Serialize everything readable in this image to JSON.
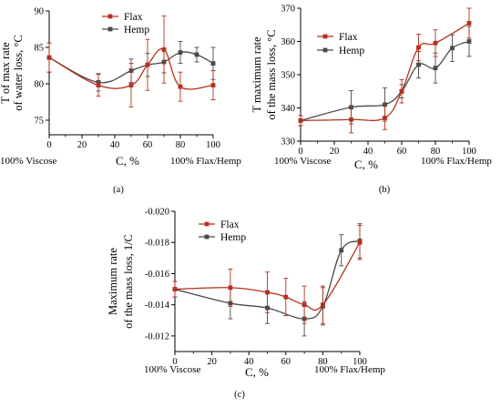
{
  "colors": {
    "flax": "#b5301f",
    "hemp": "#4a4a4a",
    "axis": "#000000"
  },
  "chart_data": [
    {
      "type": "line",
      "panel_label": "(a)",
      "title": "",
      "xlabel": "C, %",
      "ylabel": [
        "T of max rate",
        "of water loss, °C"
      ],
      "xlim": [
        0,
        100
      ],
      "ylim": [
        73,
        90
      ],
      "xticks": [
        0,
        20,
        40,
        60,
        80,
        100
      ],
      "yticks": [
        75,
        80,
        85,
        90
      ],
      "x_annotations": {
        "left": "100% Viscose",
        "right": "100% Flax/Hemp"
      },
      "legend_position": "top-center",
      "series": [
        {
          "name": "Flax",
          "color": "#b5301f",
          "marker": "square",
          "x": [
            0,
            30,
            50,
            60,
            70,
            80,
            100
          ],
          "y": [
            83.6,
            79.8,
            79.8,
            82.6,
            84.7,
            79.6,
            79.8
          ],
          "err": [
            2.0,
            1.5,
            3.0,
            3.5,
            4.6,
            2.0,
            2.0
          ]
        },
        {
          "name": "Hemp",
          "color": "#4a4a4a",
          "marker": "square",
          "x": [
            0,
            30,
            50,
            60,
            70,
            80,
            90,
            100
          ],
          "y": [
            83.6,
            80.2,
            81.8,
            82.6,
            83.0,
            84.3,
            84.0,
            82.8
          ],
          "err": [
            2.0,
            1.2,
            1.6,
            1.6,
            1.5,
            1.5,
            1.0,
            2.2
          ]
        }
      ]
    },
    {
      "type": "line",
      "panel_label": "(b)",
      "title": "",
      "xlabel": "C, %",
      "ylabel": [
        "T maximum rate",
        "of the mass loss, °C"
      ],
      "xlim": [
        0,
        100
      ],
      "ylim": [
        330,
        370
      ],
      "xticks": [
        0,
        20,
        40,
        60,
        80,
        100
      ],
      "yticks": [
        330,
        340,
        350,
        360,
        370
      ],
      "x_annotations": {
        "left": "100% Viscose",
        "right": "100% Flax/Hemp"
      },
      "legend_position": "top-left",
      "series": [
        {
          "name": "Flax",
          "color": "#b5301f",
          "marker": "square",
          "x": [
            0,
            30,
            50,
            60,
            70,
            80,
            100
          ],
          "y": [
            336.2,
            336.5,
            337.0,
            345.0,
            358.2,
            359.5,
            365.5
          ],
          "err": [
            1.5,
            4.0,
            3.5,
            3.5,
            4.0,
            4.0,
            4.5
          ]
        },
        {
          "name": "Hemp",
          "color": "#4a4a4a",
          "marker": "square",
          "x": [
            0,
            30,
            50,
            60,
            70,
            80,
            90,
            100
          ],
          "y": [
            336.2,
            340.2,
            341.0,
            345.0,
            353.0,
            352.0,
            358.0,
            360.0
          ],
          "err": [
            1.5,
            5.0,
            5.0,
            2.0,
            4.0,
            4.5,
            4.0,
            4.5
          ]
        }
      ]
    },
    {
      "type": "line",
      "panel_label": "(c)",
      "title": "",
      "xlabel": "C, %",
      "ylabel": [
        "Maximum rate",
        "of the mass loss, 1/C"
      ],
      "xlim": [
        0,
        100
      ],
      "ylim": [
        -0.011,
        -0.02
      ],
      "xticks": [
        0,
        20,
        40,
        60,
        80,
        100
      ],
      "yticks": [
        -0.012,
        -0.014,
        -0.016,
        -0.018,
        -0.02
      ],
      "ytick_labels": [
        "-0.012",
        "-0.014",
        "-0.016",
        "-0.018",
        "-0.020"
      ],
      "x_annotations": {
        "left": "100% Viscose",
        "right": "100% Flax/Hemp"
      },
      "legend_position": "top-left",
      "series": [
        {
          "name": "Flax",
          "color": "#b5301f",
          "marker": "square",
          "x": [
            0,
            30,
            50,
            60,
            70,
            80,
            100
          ],
          "y": [
            -0.015,
            -0.0151,
            -0.0148,
            -0.0145,
            -0.014,
            -0.014,
            -0.018
          ],
          "err": [
            0.0005,
            0.0012,
            0.0013,
            0.0012,
            0.0012,
            0.0012,
            0.0011
          ]
        },
        {
          "name": "Hemp",
          "color": "#4a4a4a",
          "marker": "square",
          "x": [
            0,
            30,
            50,
            70,
            80,
            90,
            100
          ],
          "y": [
            -0.015,
            -0.0141,
            -0.0138,
            -0.0131,
            -0.0139,
            -0.0175,
            -0.0181
          ],
          "err": [
            0.0005,
            0.001,
            0.001,
            0.0011,
            0.0012,
            0.001,
            0.0011
          ]
        }
      ]
    }
  ]
}
